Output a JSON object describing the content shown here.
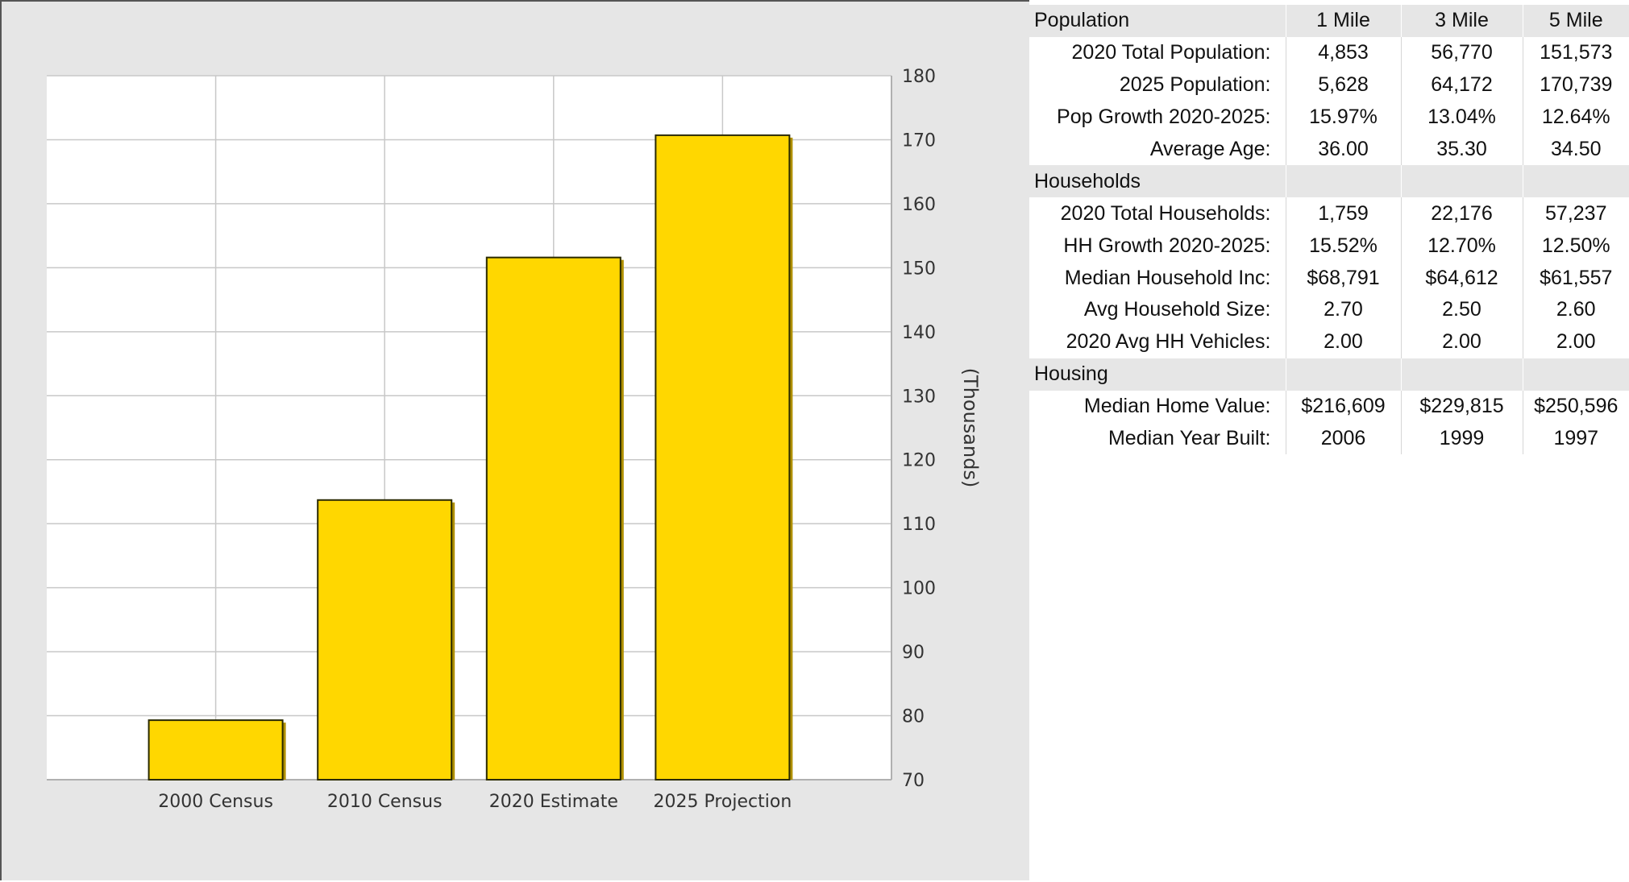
{
  "chart_data": {
    "type": "bar",
    "categories": [
      "2000 Census",
      "2010 Census",
      "2020 Estimate",
      "2025 Projection"
    ],
    "values": [
      79.3,
      113.7,
      151.6,
      170.7
    ],
    "ylabel": "(Thousands)",
    "ylim": [
      70,
      180
    ],
    "yticks": [
      70,
      80,
      90,
      100,
      110,
      120,
      130,
      140,
      150,
      160,
      170,
      180
    ],
    "grid": true,
    "y_axis_side": "right",
    "bar_color": "#ffd700"
  },
  "table": {
    "columns": [
      "1 Mile",
      "3 Mile",
      "5 Mile"
    ],
    "sections": [
      {
        "title": "Population",
        "show_columns": true,
        "rows": [
          {
            "label": "2020 Total Population:",
            "values": [
              "4,853",
              "56,770",
              "151,573"
            ]
          },
          {
            "label": "2025 Population:",
            "values": [
              "5,628",
              "64,172",
              "170,739"
            ]
          },
          {
            "label": "Pop Growth 2020-2025:",
            "values": [
              "15.97%",
              "13.04%",
              "12.64%"
            ]
          },
          {
            "label": "Average Age:",
            "values": [
              "36.00",
              "35.30",
              "34.50"
            ]
          }
        ]
      },
      {
        "title": "Households",
        "show_columns": false,
        "rows": [
          {
            "label": "2020 Total Households:",
            "values": [
              "1,759",
              "22,176",
              "57,237"
            ]
          },
          {
            "label": "HH Growth 2020-2025:",
            "values": [
              "15.52%",
              "12.70%",
              "12.50%"
            ]
          },
          {
            "label": "Median Household Inc:",
            "values": [
              "$68,791",
              "$64,612",
              "$61,557"
            ]
          },
          {
            "label": "Avg Household Size:",
            "values": [
              "2.70",
              "2.50",
              "2.60"
            ]
          },
          {
            "label": "2020 Avg HH Vehicles:",
            "values": [
              "2.00",
              "2.00",
              "2.00"
            ]
          }
        ]
      },
      {
        "title": "Housing",
        "show_columns": false,
        "rows": [
          {
            "label": "Median Home Value:",
            "values": [
              "$216,609",
              "$229,815",
              "$250,596"
            ]
          },
          {
            "label": "Median Year Built:",
            "values": [
              "2006",
              "1999",
              "1997"
            ]
          }
        ]
      }
    ]
  }
}
